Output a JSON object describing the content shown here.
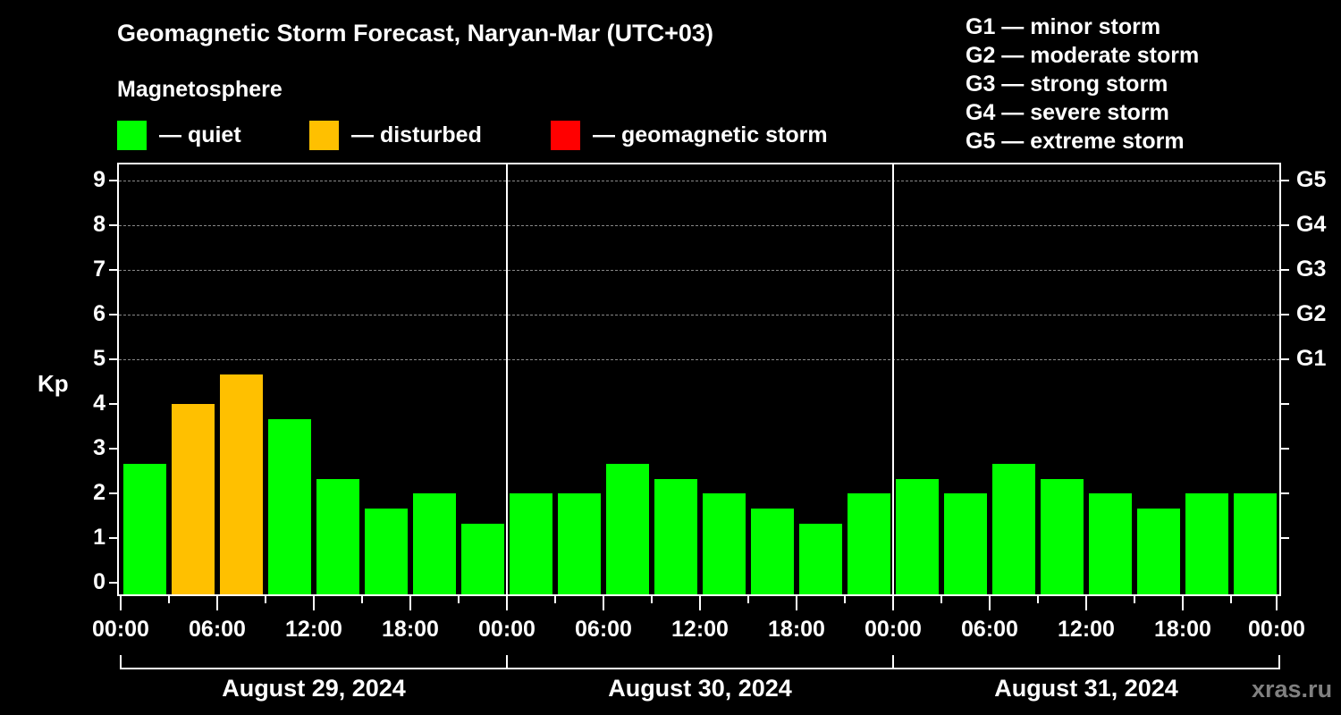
{
  "chart_data": {
    "type": "bar",
    "title": "Geomagnetic Storm Forecast, Naryan-Mar (UTC+03)",
    "subtitle": "Magnetosphere",
    "ylabel": "Kp",
    "xlabel": "",
    "ylim": [
      0,
      9
    ],
    "yticks": [
      0,
      1,
      2,
      3,
      4,
      5,
      6,
      7,
      8,
      9
    ],
    "right_axis_ticks": [
      {
        "kp": 5,
        "label": "G1"
      },
      {
        "kp": 6,
        "label": "G2"
      },
      {
        "kp": 7,
        "label": "G3"
      },
      {
        "kp": 8,
        "label": "G4"
      },
      {
        "kp": 9,
        "label": "G5"
      }
    ],
    "grid": "dashed horizontal lines at Kp 5-9",
    "legend": [
      {
        "label": "— quiet",
        "color": "#00ff00"
      },
      {
        "label": "— disturbed",
        "color": "#ffc000"
      },
      {
        "label": "— geomagnetic storm",
        "color": "#ff0000"
      }
    ],
    "scale_legend": [
      "G1 — minor storm",
      "G2 — moderate storm",
      "G3 — strong storm",
      "G4 — severe storm",
      "G5 — extreme storm"
    ],
    "x_tick_labels": [
      "00:00",
      "06:00",
      "12:00",
      "18:00",
      "00:00",
      "06:00",
      "12:00",
      "18:00",
      "00:00",
      "06:00",
      "12:00",
      "18:00",
      "00:00"
    ],
    "days": [
      "August 29, 2024",
      "August 30, 2024",
      "August 31, 2024"
    ],
    "categories": [
      "Aug 29 00-03",
      "Aug 29 03-06",
      "Aug 29 06-09",
      "Aug 29 09-12",
      "Aug 29 12-15",
      "Aug 29 15-18",
      "Aug 29 18-21",
      "Aug 29 21-24",
      "Aug 30 00-03",
      "Aug 30 03-06",
      "Aug 30 06-09",
      "Aug 30 09-12",
      "Aug 30 12-15",
      "Aug 30 15-18",
      "Aug 30 18-21",
      "Aug 30 21-24",
      "Aug 31 00-03",
      "Aug 31 03-06",
      "Aug 31 06-09",
      "Aug 31 09-12",
      "Aug 31 12-15",
      "Aug 31 15-18",
      "Aug 31 18-21",
      "Aug 31 21-24"
    ],
    "values": [
      2.67,
      4.0,
      4.67,
      3.67,
      2.33,
      1.67,
      2.0,
      1.33,
      2.0,
      2.0,
      2.67,
      2.33,
      2.0,
      1.67,
      1.33,
      2.0,
      2.33,
      2.0,
      2.67,
      2.33,
      2.0,
      1.67,
      2.0,
      2.0
    ],
    "status": [
      "quiet",
      "disturbed",
      "disturbed",
      "quiet",
      "quiet",
      "quiet",
      "quiet",
      "quiet",
      "quiet",
      "quiet",
      "quiet",
      "quiet",
      "quiet",
      "quiet",
      "quiet",
      "quiet",
      "quiet",
      "quiet",
      "quiet",
      "quiet",
      "quiet",
      "quiet",
      "quiet",
      "quiet"
    ]
  },
  "colors": {
    "quiet": "#00ff00",
    "disturbed": "#ffc000",
    "storm": "#ff0000",
    "grid": "#888888",
    "watermark": "#808080"
  },
  "watermark": "xras.ru"
}
